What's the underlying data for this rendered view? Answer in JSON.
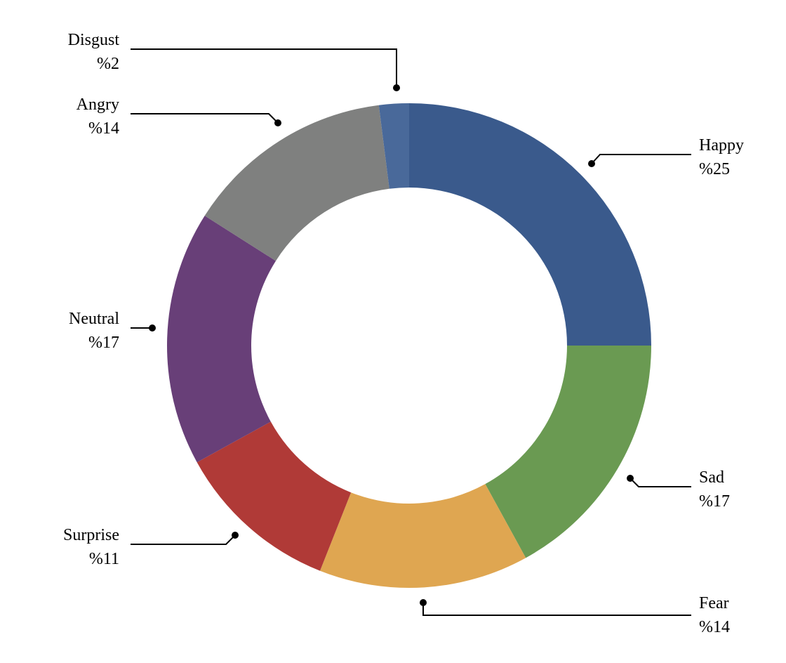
{
  "chart_data": {
    "type": "pie",
    "variant": "donut",
    "title": "",
    "slices": [
      {
        "label": "Happy",
        "value": 25,
        "value_label": "%25",
        "color": "#3A5A8C"
      },
      {
        "label": "Sad",
        "value": 17,
        "value_label": "%17",
        "color": "#6A9A52"
      },
      {
        "label": "Fear",
        "value": 14,
        "value_label": "%14",
        "color": "#DFA651"
      },
      {
        "label": "Surprise",
        "value": 11,
        "value_label": "%11",
        "color": "#B03A37"
      },
      {
        "label": "Neutral",
        "value": 17,
        "value_label": "%17",
        "color": "#683F78"
      },
      {
        "label": "Angry",
        "value": 14,
        "value_label": "%14",
        "color": "#7F807F"
      },
      {
        "label": "Disgust",
        "value": 2,
        "value_label": "%2",
        "color": "#49699A"
      }
    ],
    "start": "12 o'clock",
    "direction": "clockwise",
    "legend": "none"
  }
}
